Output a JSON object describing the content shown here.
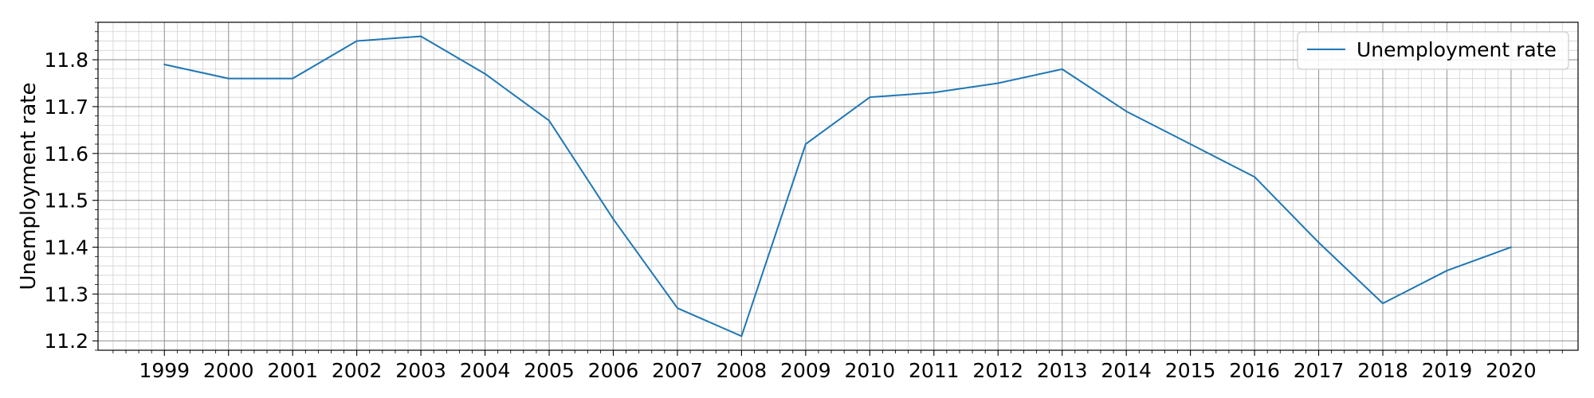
{
  "chart_data": {
    "type": "line",
    "title": "",
    "xlabel": "",
    "ylabel": "Unemployment rate",
    "x": [
      "1999",
      "2000",
      "2001",
      "2002",
      "2003",
      "2004",
      "2005",
      "2006",
      "2007",
      "2008",
      "2009",
      "2010",
      "2011",
      "2012",
      "2013",
      "2014",
      "2015",
      "2016",
      "2017",
      "2018",
      "2019",
      "2020"
    ],
    "series": [
      {
        "name": "Unemployment rate",
        "color": "#1f77b4",
        "values": [
          11.79,
          11.76,
          11.76,
          11.84,
          11.85,
          11.77,
          11.67,
          11.46,
          11.27,
          11.21,
          11.62,
          11.72,
          11.73,
          11.75,
          11.78,
          11.69,
          11.62,
          11.55,
          11.41,
          11.28,
          11.35,
          11.4
        ]
      }
    ],
    "ylim": [
      11.18,
      11.88
    ],
    "yticks": [
      11.2,
      11.3,
      11.4,
      11.5,
      11.6,
      11.7,
      11.8
    ],
    "ytick_labels": [
      "11.2",
      "11.3",
      "11.4",
      "11.5",
      "11.6",
      "11.7",
      "11.8"
    ],
    "grid": true,
    "minor_grid": true,
    "legend_position": "top-right"
  }
}
